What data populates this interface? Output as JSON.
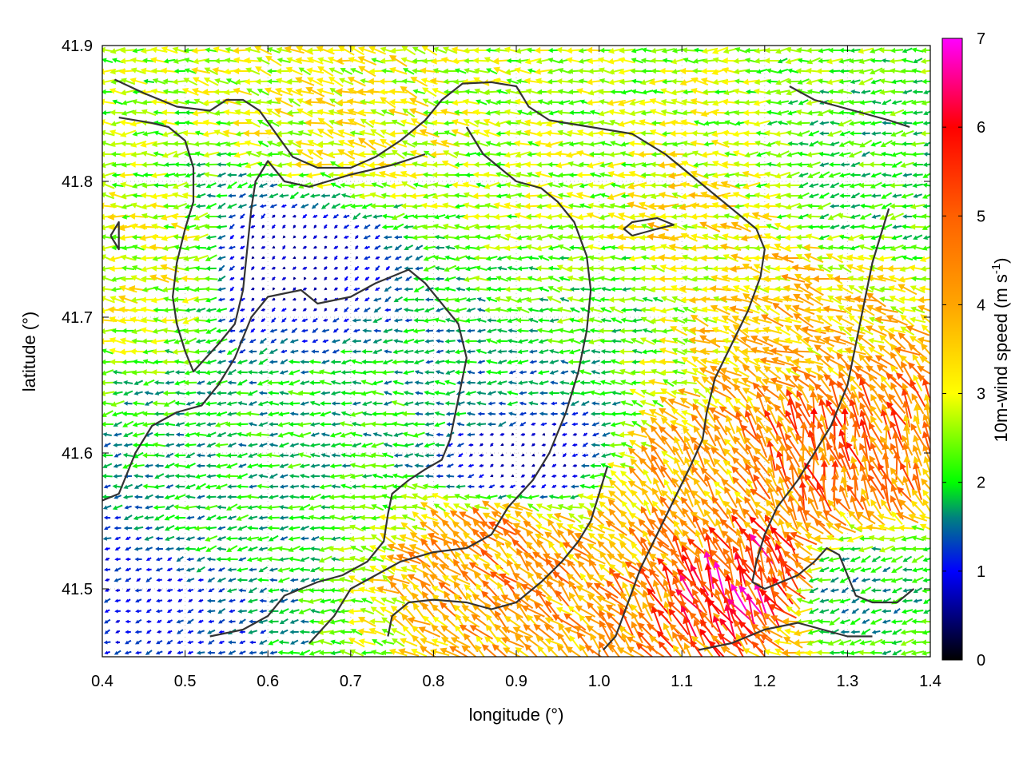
{
  "chart_data": {
    "type": "quiver",
    "title": "",
    "xlabel": "longitude (°)",
    "ylabel": "latitude (°)",
    "xlim": [
      0.4,
      1.4
    ],
    "ylim": [
      41.45,
      41.9
    ],
    "xticks": [
      "0.4",
      "0.5",
      "0.6",
      "0.7",
      "0.8",
      "0.9",
      "1.0",
      "1.1",
      "1.2",
      "1.3",
      "1.4"
    ],
    "yticks": [
      "41.5",
      "41.6",
      "41.7",
      "41.8",
      "41.9"
    ],
    "grid": true,
    "colorbar": {
      "label": "10m-wind speed",
      "unit_prefix": "(m s",
      "unit_exp": "-1",
      "unit_suffix": ")",
      "range": [
        0,
        7
      ],
      "ticks": [
        "0",
        "1",
        "2",
        "3",
        "4",
        "5",
        "6",
        "7"
      ],
      "stops": [
        {
          "v": 0,
          "color": "#000000"
        },
        {
          "v": 1,
          "color": "#0000ff"
        },
        {
          "v": 1.6,
          "color": "#008080"
        },
        {
          "v": 2,
          "color": "#00ff00"
        },
        {
          "v": 3,
          "color": "#ffff00"
        },
        {
          "v": 4,
          "color": "#ffa500"
        },
        {
          "v": 5,
          "color": "#ff6000"
        },
        {
          "v": 6,
          "color": "#ff0000"
        },
        {
          "v": 7,
          "color": "#ff00ff"
        }
      ]
    },
    "wind_regions": [
      {
        "lon": 0.87,
        "lat": 41.64,
        "speed": 1.7,
        "dir": 180
      },
      {
        "lon": 0.9,
        "lat": 41.6,
        "speed": 0.6,
        "dir": 210
      },
      {
        "lon": 0.62,
        "lat": 41.74,
        "speed": 0.7,
        "dir": 220
      },
      {
        "lon": 0.45,
        "lat": 41.74,
        "speed": 2.9,
        "dir": 175
      },
      {
        "lon": 0.7,
        "lat": 41.84,
        "speed": 3.0,
        "dir": 165
      },
      {
        "lon": 0.95,
        "lat": 41.8,
        "speed": 2.6,
        "dir": 180
      },
      {
        "lon": 1.1,
        "lat": 41.76,
        "speed": 3.2,
        "dir": 175
      },
      {
        "lon": 1.22,
        "lat": 41.7,
        "speed": 3.6,
        "dir": 160
      },
      {
        "lon": 0.88,
        "lat": 41.53,
        "speed": 4.2,
        "dir": 135
      },
      {
        "lon": 1.12,
        "lat": 41.57,
        "speed": 3.9,
        "dir": 130
      },
      {
        "lon": 1.19,
        "lat": 41.51,
        "speed": 5.6,
        "dir": 115
      },
      {
        "lon": 1.28,
        "lat": 41.6,
        "speed": 4.8,
        "dir": 105
      },
      {
        "lon": 0.55,
        "lat": 41.55,
        "speed": 1.9,
        "dir": 190
      },
      {
        "lon": 0.45,
        "lat": 41.5,
        "speed": 1.1,
        "dir": 200
      },
      {
        "lon": 1.32,
        "lat": 41.8,
        "speed": 2.1,
        "dir": 190
      },
      {
        "lon": 0.72,
        "lat": 41.62,
        "speed": 2.0,
        "dir": 180
      },
      {
        "lon": 1.0,
        "lat": 41.72,
        "speed": 2.2,
        "dir": 175
      },
      {
        "lon": 1.3,
        "lat": 41.5,
        "speed": 1.8,
        "dir": 200
      }
    ],
    "contours": [
      [
        [
          0.415,
          41.875
        ],
        [
          0.45,
          41.865
        ],
        [
          0.49,
          41.855
        ],
        [
          0.53,
          41.852
        ],
        [
          0.55,
          41.86
        ],
        [
          0.57,
          41.86
        ],
        [
          0.59,
          41.852
        ],
        [
          0.61,
          41.835
        ],
        [
          0.63,
          41.818
        ],
        [
          0.66,
          41.81
        ],
        [
          0.7,
          41.81
        ],
        [
          0.73,
          41.818
        ],
        [
          0.76,
          41.83
        ],
        [
          0.79,
          41.845
        ],
        [
          0.81,
          41.86
        ],
        [
          0.835,
          41.872
        ],
        [
          0.87,
          41.873
        ],
        [
          0.9,
          41.87
        ],
        [
          0.915,
          41.855
        ],
        [
          0.94,
          41.845
        ],
        [
          0.99,
          41.84
        ],
        [
          1.04,
          41.835
        ],
        [
          1.08,
          41.82
        ],
        [
          1.11,
          41.805
        ],
        [
          1.14,
          41.79
        ],
        [
          1.17,
          41.775
        ],
        [
          1.19,
          41.765
        ],
        [
          1.2,
          41.75
        ],
        [
          1.195,
          41.73
        ],
        [
          1.18,
          41.705
        ],
        [
          1.16,
          41.68
        ],
        [
          1.14,
          41.655
        ],
        [
          1.13,
          41.63
        ],
        [
          1.125,
          41.61
        ],
        [
          1.11,
          41.59
        ],
        [
          1.09,
          41.565
        ],
        [
          1.07,
          41.54
        ],
        [
          1.05,
          41.515
        ],
        [
          1.035,
          41.49
        ],
        [
          1.02,
          41.465
        ],
        [
          1.005,
          41.455
        ]
      ],
      [
        [
          0.42,
          41.847
        ],
        [
          0.46,
          41.843
        ],
        [
          0.48,
          41.84
        ],
        [
          0.5,
          41.83
        ],
        [
          0.51,
          41.81
        ],
        [
          0.51,
          41.785
        ],
        [
          0.5,
          41.765
        ],
        [
          0.49,
          41.74
        ],
        [
          0.485,
          41.715
        ],
        [
          0.49,
          41.695
        ],
        [
          0.5,
          41.675
        ],
        [
          0.51,
          41.66
        ],
        [
          0.54,
          41.68
        ],
        [
          0.56,
          41.695
        ],
        [
          0.57,
          41.72
        ],
        [
          0.575,
          41.75
        ],
        [
          0.58,
          41.78
        ],
        [
          0.585,
          41.8
        ],
        [
          0.6,
          41.815
        ],
        [
          0.62,
          41.8
        ],
        [
          0.65,
          41.796
        ],
        [
          0.7,
          41.805
        ],
        [
          0.75,
          41.812
        ],
        [
          0.79,
          41.82
        ]
      ],
      [
        [
          0.4,
          41.565
        ],
        [
          0.42,
          41.57
        ],
        [
          0.44,
          41.6
        ],
        [
          0.46,
          41.62
        ],
        [
          0.49,
          41.63
        ],
        [
          0.52,
          41.635
        ],
        [
          0.54,
          41.65
        ],
        [
          0.56,
          41.67
        ],
        [
          0.58,
          41.7
        ],
        [
          0.6,
          41.715
        ],
        [
          0.64,
          41.72
        ],
        [
          0.66,
          41.71
        ],
        [
          0.7,
          41.715
        ],
        [
          0.73,
          41.725
        ],
        [
          0.75,
          41.73
        ],
        [
          0.77,
          41.735
        ],
        [
          0.79,
          41.725
        ],
        [
          0.81,
          41.71
        ],
        [
          0.83,
          41.695
        ],
        [
          0.84,
          41.67
        ],
        [
          0.83,
          41.64
        ],
        [
          0.82,
          41.61
        ],
        [
          0.81,
          41.595
        ],
        [
          0.79,
          41.588
        ],
        [
          0.77,
          41.58
        ],
        [
          0.75,
          41.57
        ],
        [
          0.745,
          41.555
        ],
        [
          0.74,
          41.535
        ],
        [
          0.72,
          41.52
        ],
        [
          0.69,
          41.51
        ],
        [
          0.66,
          41.505
        ],
        [
          0.62,
          41.495
        ],
        [
          0.6,
          41.48
        ],
        [
          0.57,
          41.47
        ],
        [
          0.53,
          41.465
        ]
      ],
      [
        [
          0.65,
          41.46
        ],
        [
          0.68,
          41.48
        ],
        [
          0.7,
          41.5
        ],
        [
          0.73,
          41.51
        ],
        [
          0.76,
          41.52
        ],
        [
          0.8,
          41.527
        ],
        [
          0.84,
          41.53
        ],
        [
          0.87,
          41.54
        ],
        [
          0.89,
          41.56
        ],
        [
          0.92,
          41.58
        ],
        [
          0.94,
          41.6
        ],
        [
          0.96,
          41.63
        ],
        [
          0.975,
          41.66
        ],
        [
          0.985,
          41.69
        ],
        [
          0.99,
          41.72
        ],
        [
          0.985,
          41.745
        ],
        [
          0.97,
          41.77
        ],
        [
          0.95,
          41.785
        ],
        [
          0.93,
          41.795
        ],
        [
          0.9,
          41.8
        ],
        [
          0.88,
          41.81
        ],
        [
          0.86,
          41.82
        ],
        [
          0.84,
          41.84
        ]
      ],
      [
        [
          0.745,
          41.465
        ],
        [
          0.75,
          41.48
        ],
        [
          0.77,
          41.49
        ],
        [
          0.8,
          41.492
        ],
        [
          0.84,
          41.49
        ],
        [
          0.87,
          41.485
        ],
        [
          0.9,
          41.49
        ],
        [
          0.93,
          41.505
        ],
        [
          0.955,
          41.52
        ],
        [
          0.975,
          41.535
        ],
        [
          0.99,
          41.55
        ],
        [
          1.0,
          41.57
        ],
        [
          1.01,
          41.59
        ]
      ],
      [
        [
          1.23,
          41.87
        ],
        [
          1.26,
          41.86
        ],
        [
          1.29,
          41.855
        ],
        [
          1.32,
          41.85
        ],
        [
          1.35,
          41.845
        ],
        [
          1.375,
          41.84
        ]
      ],
      [
        [
          1.35,
          41.78
        ],
        [
          1.34,
          41.76
        ],
        [
          1.33,
          41.74
        ],
        [
          1.32,
          41.71
        ],
        [
          1.31,
          41.68
        ],
        [
          1.3,
          41.65
        ],
        [
          1.28,
          41.62
        ],
        [
          1.26,
          41.6
        ],
        [
          1.24,
          41.58
        ],
        [
          1.215,
          41.56
        ],
        [
          1.2,
          41.54
        ],
        [
          1.19,
          41.52
        ],
        [
          1.185,
          41.505
        ],
        [
          1.2,
          41.5
        ],
        [
          1.22,
          41.505
        ],
        [
          1.24,
          41.51
        ],
        [
          1.26,
          41.52
        ],
        [
          1.275,
          41.53
        ],
        [
          1.29,
          41.525
        ],
        [
          1.3,
          41.51
        ],
        [
          1.31,
          41.495
        ],
        [
          1.33,
          41.49
        ],
        [
          1.36,
          41.49
        ],
        [
          1.38,
          41.5
        ]
      ],
      [
        [
          1.12,
          41.455
        ],
        [
          1.16,
          41.46
        ],
        [
          1.2,
          41.47
        ],
        [
          1.24,
          41.475
        ],
        [
          1.27,
          41.47
        ],
        [
          1.3,
          41.465
        ],
        [
          1.33,
          41.465
        ]
      ],
      [
        [
          1.04,
          41.76
        ],
        [
          1.07,
          41.765
        ],
        [
          1.09,
          41.768
        ],
        [
          1.07,
          41.773
        ],
        [
          1.04,
          41.77
        ],
        [
          1.03,
          41.765
        ],
        [
          1.04,
          41.76
        ]
      ],
      [
        [
          0.41,
          41.76
        ],
        [
          0.42,
          41.75
        ],
        [
          0.42,
          41.77
        ],
        [
          0.41,
          41.76
        ]
      ]
    ]
  }
}
